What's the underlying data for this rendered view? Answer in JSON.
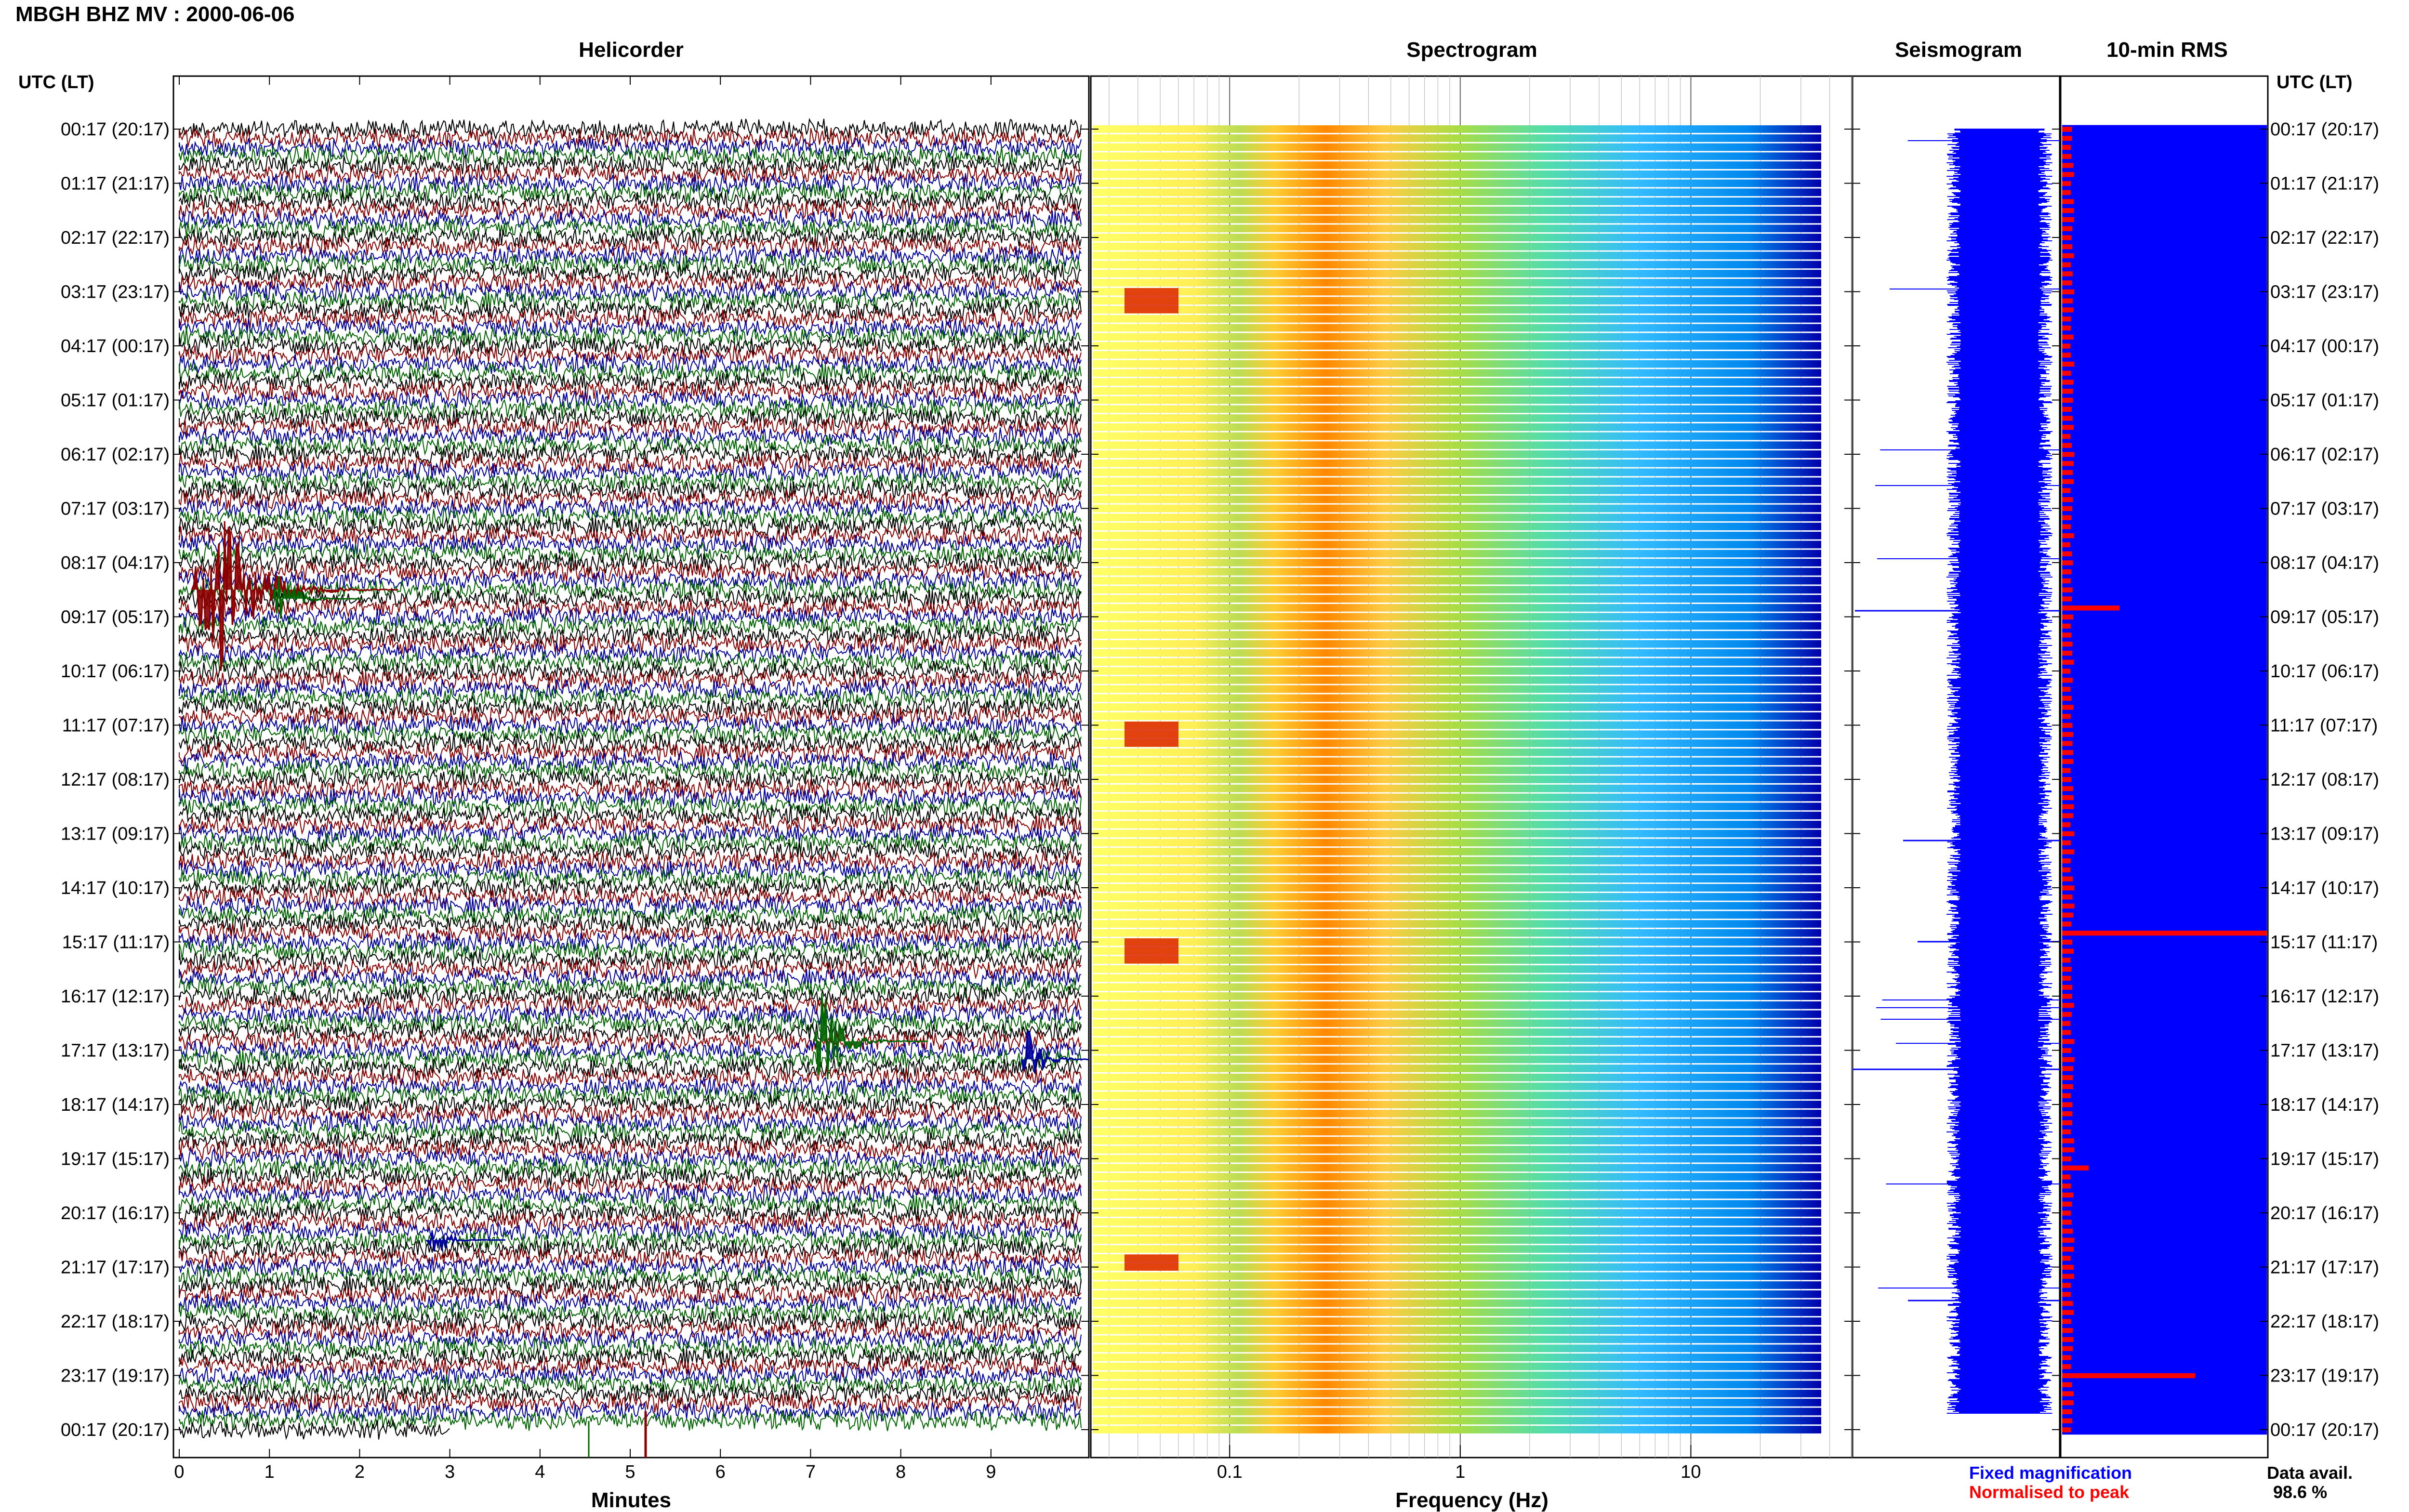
{
  "title": "MBGH BHZ MV : 2000-06-06",
  "panels": {
    "helicorder": "Helicorder",
    "spectrogram": "Spectrogram",
    "seismogram": "Seismogram",
    "rms": "10-min RMS"
  },
  "utc_lt_label": "UTC (LT)",
  "time_labels": [
    "00:17 (20:17)",
    "01:17 (21:17)",
    "02:17 (22:17)",
    "03:17 (23:17)",
    "04:17 (00:17)",
    "05:17 (01:17)",
    "06:17 (02:17)",
    "07:17 (03:17)",
    "08:17 (04:17)",
    "09:17 (05:17)",
    "10:17 (06:17)",
    "11:17 (07:17)",
    "12:17 (08:17)",
    "13:17 (09:17)",
    "14:17 (10:17)",
    "15:17 (11:17)",
    "16:17 (12:17)",
    "17:17 (13:17)",
    "18:17 (14:17)",
    "19:17 (15:17)",
    "20:17 (16:17)",
    "21:17 (17:17)",
    "22:17 (18:17)",
    "23:17 (19:17)",
    "00:17 (20:17)"
  ],
  "xaxis": {
    "minutes_label": "Minutes",
    "minute_ticks": [
      "0",
      "1",
      "2",
      "3",
      "4",
      "5",
      "6",
      "7",
      "8",
      "9"
    ],
    "frequency_label": "Frequency (Hz)",
    "freq_ticks": [
      "0.1",
      "1",
      "10"
    ]
  },
  "legend": {
    "fixed": "Fixed magnification",
    "normalised": "Normalised to peak",
    "data_avail_label": "Data avail.",
    "data_avail_value": "98.6 %"
  },
  "colors": {
    "trace_cycle": [
      "#000000",
      "#8b0000",
      "#0000a0",
      "#006400"
    ],
    "seismogram": "#0000ff",
    "rms_fixed": "#0000ff",
    "rms_normalised": "#ff0000",
    "legend_fixed": "#0000ff",
    "legend_normalised": "#ff0000"
  },
  "chart_data": [
    {
      "type": "line",
      "name": "Helicorder",
      "xlabel": "Minutes",
      "x_range": [
        0,
        10
      ],
      "rows_per_hour": 6,
      "rows": 145,
      "events": [
        {
          "row": 51,
          "minute": 0.3,
          "amplitude": 1.0,
          "color": "#8b0000"
        },
        {
          "row": 52,
          "minute": 1.2,
          "amplitude": 0.3,
          "color": "#006400"
        },
        {
          "row": 101,
          "minute": 7.2,
          "amplitude": 0.45,
          "color": "#006400"
        },
        {
          "row": 103,
          "minute": 9.5,
          "amplitude": 0.3,
          "color": "#0000a0"
        },
        {
          "row": 123,
          "minute": 2.9,
          "amplitude": 0.25,
          "color": "#0000a0"
        }
      ]
    },
    {
      "type": "heatmap",
      "name": "Spectrogram",
      "xlabel": "Frequency (Hz)",
      "x_scale": "log",
      "x_range": [
        0.025,
        50
      ],
      "rows": 145,
      "colormap": [
        "#ffff66",
        "#ffcc33",
        "#ff8800",
        "#dd2200",
        "#aadd44",
        "#55ddaa",
        "#33bbff",
        "#0077ee",
        "#0000aa"
      ]
    },
    {
      "type": "line",
      "name": "Seismogram",
      "rows": 145,
      "color": "#0000ff"
    },
    {
      "type": "bar",
      "name": "10-min RMS",
      "rows": 145,
      "normalised_peaks": [
        {
          "row": 53,
          "value": 0.28
        },
        {
          "row": 89,
          "value": 1.0
        },
        {
          "row": 115,
          "value": 0.13
        },
        {
          "row": 138,
          "value": 0.65
        }
      ]
    }
  ]
}
